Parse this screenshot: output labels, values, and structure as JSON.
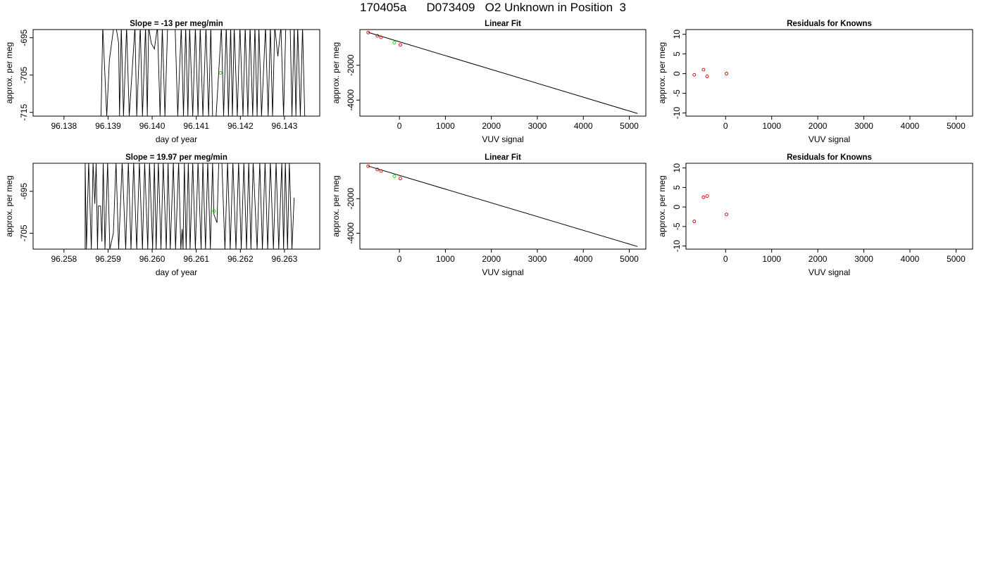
{
  "main_title": "170405a      D073409   O2 Unknown in Position  3",
  "chart_data": [
    {
      "type": "line",
      "title": "Slope =  -13  per meg/min",
      "xlabel": "day of year",
      "ylabel": "approx. per meg",
      "xlim": [
        96.1373,
        96.1438
      ],
      "ylim": [
        -716,
        -692.8
      ],
      "xticks": [
        96.138,
        96.139,
        96.14,
        96.141,
        96.142,
        96.143
      ],
      "xtick_labels": [
        "96.138",
        "96.139",
        "96.140",
        "96.141",
        "96.142",
        "96.143"
      ],
      "yticks": [
        -715,
        -705,
        -695
      ],
      "ytick_labels": [
        "-715",
        "-705",
        "-695"
      ],
      "line_x": [
        96.13884,
        96.13888,
        96.13897,
        96.13903,
        96.13913,
        96.13918,
        96.13924,
        96.13926,
        96.1393,
        96.13935,
        96.13942,
        96.13948,
        96.13961,
        96.13965,
        96.13973,
        96.13978,
        96.13985,
        96.13989,
        96.13992,
        96.13998,
        96.14005,
        96.14012,
        96.14018,
        96.14023,
        96.14029,
        96.14035,
        96.14052,
        96.14058,
        96.14066,
        96.14071,
        96.14076,
        96.14081,
        96.14085,
        96.14092,
        96.14098,
        96.14104,
        96.14109,
        96.14115,
        96.14122,
        96.14128,
        96.14133,
        96.14137,
        96.14145,
        96.14157,
        96.14162,
        96.14168,
        96.14173,
        96.14178,
        96.14182,
        96.14186,
        96.14193,
        96.14199,
        96.14206,
        96.14211,
        96.14217,
        96.14222,
        96.14228,
        96.14233,
        96.14238,
        96.14242,
        96.14248,
        96.14257,
        96.14263,
        96.14268,
        96.14273,
        96.14278,
        96.14285,
        96.14292,
        96.14298,
        96.14303,
        96.14313,
        96.14317,
        96.14322,
        96.14326,
        96.1433,
        96.14336,
        96.14341,
        96.14346
      ],
      "line_y": [
        -716,
        -692,
        -716,
        -701,
        -692,
        -692,
        -696.5,
        -716,
        -692,
        -716,
        -692,
        -716,
        -692,
        -716,
        -692,
        -716,
        -692,
        -716,
        -692,
        -696.5,
        -698,
        -692,
        -716,
        -692,
        -716,
        -692,
        -692,
        -716,
        -692,
        -716,
        -692,
        -716,
        -692,
        -716,
        -692,
        -716,
        -692,
        -716,
        -692,
        -716,
        -692,
        -716,
        -716,
        -692,
        -716,
        -692,
        -716,
        -692,
        -716,
        -692,
        -716,
        -692,
        -716,
        -692,
        -716,
        -692,
        -716,
        -692,
        -716,
        -692,
        -716,
        -692,
        -716,
        -692,
        -716,
        -692,
        -700,
        -692,
        -716,
        -692,
        -692,
        -716,
        -692,
        -716,
        -692,
        -716,
        -692,
        -716
      ],
      "points": [
        {
          "x": 96.14155,
          "y": -704.4
        }
      ],
      "point_color": "#00dd00"
    },
    {
      "type": "scatter",
      "title": "Linear Fit",
      "xlabel": "VUV signal",
      "ylabel": "approx. per meg",
      "xlim": [
        -860,
        5360
      ],
      "ylim": [
        -4920,
        50
      ],
      "xticks": [
        0,
        1000,
        2000,
        3000,
        4000,
        5000
      ],
      "xtick_labels": [
        "0",
        "1000",
        "2000",
        "3000",
        "4000",
        "5000"
      ],
      "yticks": [
        -4000,
        -2000
      ],
      "ytick_labels": [
        "-4000",
        "-2000"
      ],
      "points": [
        {
          "x": -680,
          "y": -120,
          "color": "#cc0000"
        },
        {
          "x": -480,
          "y": -310,
          "color": "#cc0000"
        },
        {
          "x": -400,
          "y": -395,
          "color": "#cc0000"
        },
        {
          "x": 20,
          "y": -830,
          "color": "#cc0000"
        },
        {
          "x": -110,
          "y": -700,
          "color": "#00dd00"
        }
      ],
      "fit_line": {
        "x": [
          -680,
          5180
        ],
        "y": [
          -110,
          -4770
        ]
      }
    },
    {
      "type": "scatter",
      "title": "Residuals for Knowns",
      "xlabel": "VUV signal",
      "ylabel": "approx. per meg",
      "xlim": [
        -860,
        5360
      ],
      "ylim": [
        -10.8,
        11.2
      ],
      "xticks": [
        0,
        1000,
        2000,
        3000,
        4000,
        5000
      ],
      "xtick_labels": [
        "0",
        "1000",
        "2000",
        "3000",
        "4000",
        "5000"
      ],
      "yticks": [
        -10,
        -5,
        0,
        5,
        10
      ],
      "ytick_labels": [
        "-10",
        "-5",
        "0",
        "5",
        "10"
      ],
      "points": [
        {
          "x": -680,
          "y": -0.3,
          "color": "#cc0000"
        },
        {
          "x": -480,
          "y": 1.0,
          "color": "#cc0000"
        },
        {
          "x": -400,
          "y": -0.7,
          "color": "#cc0000"
        },
        {
          "x": 20,
          "y": 0.0,
          "color": "#cc0000"
        }
      ]
    },
    {
      "type": "line",
      "title": "Slope =  19.97  per meg/min",
      "xlabel": "day of year",
      "ylabel": "approx. per meg",
      "xlim": [
        96.2573,
        96.2638
      ],
      "ylim": [
        -708.8,
        -688.3
      ],
      "xticks": [
        96.258,
        96.259,
        96.26,
        96.261,
        96.262,
        96.263
      ],
      "xtick_labels": [
        "96.258",
        "96.259",
        "96.260",
        "96.261",
        "96.262",
        "96.263"
      ],
      "yticks": [
        -705,
        -695
      ],
      "ytick_labels": [
        "-705",
        "-695"
      ],
      "line_x": [
        96.25848,
        96.25848,
        96.25851,
        96.25856,
        96.25862,
        96.25866,
        96.2587,
        96.25873,
        96.25876,
        96.25878,
        96.25883,
        96.25886,
        96.25889,
        96.25893,
        96.25899,
        96.25904,
        96.25912,
        96.25918,
        96.25924,
        96.25932,
        96.2594,
        96.25946,
        96.25952,
        96.25958,
        96.25965,
        96.25971,
        96.25978,
        96.25983,
        96.2599,
        96.25994,
        96.26001,
        96.26005,
        96.26009,
        96.26014,
        96.2602,
        96.26025,
        96.26032,
        96.26036,
        96.26041,
        96.26048,
        96.26053,
        96.2606,
        96.26065,
        96.26068,
        96.2607,
        96.26073,
        96.26077,
        96.26082,
        96.26086,
        96.26092,
        96.26098,
        96.26104,
        96.26111,
        96.26115,
        96.26121,
        96.26126,
        96.26132,
        96.26137,
        96.2614,
        96.26147,
        96.26151,
        96.26158,
        96.26165,
        96.26171,
        96.26177,
        96.26183,
        96.2619,
        96.26196,
        96.26202,
        96.26208,
        96.26214,
        96.26219,
        96.26224,
        96.26229,
        96.26238,
        96.26244,
        96.2625,
        96.26256,
        96.26262,
        96.26268,
        96.26275,
        96.26281,
        96.26287,
        96.26294,
        96.26298,
        96.26302,
        96.26307,
        96.26311,
        96.26317,
        96.26322
      ],
      "line_y": [
        -708.8,
        -688,
        -708.8,
        -688,
        -708.8,
        -688,
        -698,
        -688,
        -708.8,
        -698.5,
        -698.5,
        -707,
        -688,
        -708.8,
        -688,
        -708.8,
        -705,
        -688,
        -708.8,
        -688,
        -708.8,
        -688,
        -708.8,
        -688,
        -708.8,
        -688,
        -708.8,
        -688,
        -708.8,
        -688,
        -708.8,
        -688,
        -708.8,
        -688,
        -708.8,
        -688,
        -708.8,
        -688,
        -708.8,
        -688,
        -708.8,
        -688,
        -708.8,
        -704,
        -708.8,
        -688,
        -708.8,
        -688,
        -708.8,
        -688,
        -708.8,
        -688,
        -708.8,
        -688,
        -708.8,
        -688,
        -708.8,
        -688,
        -700.5,
        -702.5,
        -688,
        -688,
        -708.8,
        -688,
        -708.8,
        -688,
        -708.8,
        -688,
        -708.8,
        -688,
        -708.8,
        -688,
        -708.8,
        -688,
        -708.8,
        -688,
        -708.8,
        -688,
        -708.8,
        -688,
        -708.8,
        -688,
        -708.8,
        -688,
        -708.8,
        -688,
        -708.8,
        -688,
        -708.8,
        -696.5
      ],
      "points": [
        {
          "x": 96.2614,
          "y": -699.7
        }
      ],
      "point_color": "#00dd00"
    },
    {
      "type": "scatter",
      "title": "Linear Fit",
      "xlabel": "VUV signal",
      "ylabel": "approx. per meg",
      "xlim": [
        -860,
        5360
      ],
      "ylim": [
        -4920,
        50
      ],
      "xticks": [
        0,
        1000,
        2000,
        3000,
        4000,
        5000
      ],
      "xtick_labels": [
        "0",
        "1000",
        "2000",
        "3000",
        "4000",
        "5000"
      ],
      "yticks": [
        -4000,
        -2000
      ],
      "ytick_labels": [
        "-4000",
        "-2000"
      ],
      "points": [
        {
          "x": -680,
          "y": -120,
          "color": "#cc0000"
        },
        {
          "x": -480,
          "y": -310,
          "color": "#cc0000"
        },
        {
          "x": -400,
          "y": -395,
          "color": "#cc0000"
        },
        {
          "x": 20,
          "y": -830,
          "color": "#cc0000"
        },
        {
          "x": -110,
          "y": -700,
          "color": "#00dd00"
        }
      ],
      "fit_line": {
        "x": [
          -680,
          5180
        ],
        "y": [
          -110,
          -4770
        ]
      }
    },
    {
      "type": "scatter",
      "title": "Residuals for Knowns",
      "xlabel": "VUV signal",
      "ylabel": "approx. per meg",
      "xlim": [
        -860,
        5360
      ],
      "ylim": [
        -10.8,
        11.2
      ],
      "xticks": [
        0,
        1000,
        2000,
        3000,
        4000,
        5000
      ],
      "xtick_labels": [
        "0",
        "1000",
        "2000",
        "3000",
        "4000",
        "5000"
      ],
      "yticks": [
        -10,
        -5,
        0,
        5,
        10
      ],
      "ytick_labels": [
        "-10",
        "-5",
        "0",
        "5",
        "10"
      ],
      "points": [
        {
          "x": -680,
          "y": -3.7,
          "color": "#cc0000"
        },
        {
          "x": -480,
          "y": 2.5,
          "color": "#cc0000"
        },
        {
          "x": -400,
          "y": 2.8,
          "color": "#cc0000"
        },
        {
          "x": 20,
          "y": -1.9,
          "color": "#cc0000"
        }
      ]
    }
  ]
}
